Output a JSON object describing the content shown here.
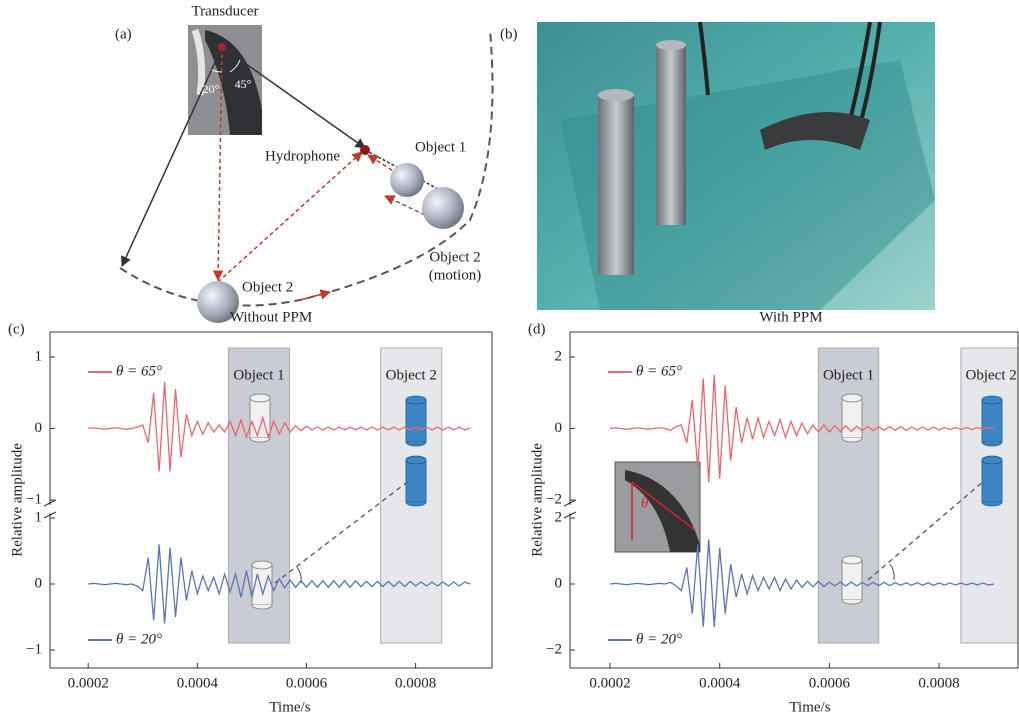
{
  "diagram": {
    "label": "(a)",
    "transducer": "Transducer",
    "angle_1": "20°",
    "angle_2": "45°",
    "hydrophone": "Hydrophone",
    "object_1": "Object 1",
    "object_2": "Object 2",
    "object_2_motion": [
      "Object 2",
      "(motion)"
    ]
  },
  "photo": {
    "label": "(b)"
  },
  "chart_data": [
    {
      "type": "line",
      "label": "(c)",
      "title": "Without PPM",
      "x_label": "Time/s",
      "y_label": "Relative amplitude",
      "xlim": [
        0.00013,
        0.00094
      ],
      "xticks": [
        0.0002,
        0.0004,
        0.0006,
        0.0008
      ],
      "ylim": [
        -1,
        1
      ],
      "yticks": [
        {
          "value": -1,
          "label": "−1"
        },
        0,
        1
      ],
      "regions": [
        {
          "label": "Object 1",
          "xlim": [
            0.000457,
            0.000569
          ],
          "color": "#c9ccd3"
        },
        {
          "label": "Object 2",
          "xlim": [
            0.000736,
            0.000848
          ],
          "color": "#e6e7ea"
        }
      ],
      "x": [
        0.0002,
        0.00021,
        0.00022,
        0.00023,
        0.00024,
        0.00025,
        0.00026,
        0.00027,
        0.00028,
        0.00029,
        0.0003,
        0.00031,
        0.00032,
        0.00033,
        0.00034,
        0.00035,
        0.00036,
        0.00037,
        0.00038,
        0.00039,
        0.0004,
        0.00041,
        0.00042,
        0.00043,
        0.00044,
        0.00045,
        0.00046,
        0.00047,
        0.00048,
        0.00049,
        0.0005,
        0.00051,
        0.00052,
        0.00053,
        0.00054,
        0.00055,
        0.00056,
        0.00057,
        0.00058,
        0.00059,
        0.0006,
        0.00061,
        0.00062,
        0.00063,
        0.00064,
        0.00065,
        0.00066,
        0.00067,
        0.00068,
        0.00069,
        0.0007,
        0.00071,
        0.00072,
        0.00073,
        0.00074,
        0.00075,
        0.00076,
        0.00077,
        0.00078,
        0.00079,
        0.0008,
        0.00081,
        0.00082,
        0.00083,
        0.00084,
        0.00085,
        0.00086,
        0.00087,
        0.00088,
        0.00089,
        0.0009
      ],
      "series": [
        {
          "name": "θ = 65°",
          "color": "#ef6469",
          "values": [
            0,
            0.01,
            0,
            -0.01,
            0,
            0.01,
            0,
            -0.01,
            0,
            0.02,
            0.05,
            -0.2,
            0.5,
            -0.6,
            0.65,
            -0.6,
            0.55,
            -0.4,
            0.2,
            -0.1,
            0.1,
            -0.08,
            0.08,
            -0.05,
            0.05,
            -0.05,
            0.1,
            -0.1,
            0.12,
            -0.12,
            0.1,
            -0.1,
            0.15,
            -0.12,
            0.1,
            -0.08,
            0.08,
            -0.05,
            0.04,
            -0.03,
            0.03,
            -0.02,
            0.02,
            -0.02,
            0.02,
            -0.02,
            0.02,
            -0.02,
            0.02,
            -0.02,
            0.02,
            -0.02,
            0.02,
            -0.02,
            0.02,
            -0.02,
            0.02,
            -0.02,
            0.02,
            -0.02,
            0.02,
            -0.02,
            0.02,
            -0.02,
            0.02,
            -0.02,
            0.02,
            -0.02,
            0.02,
            -0.02,
            0.01
          ]
        },
        {
          "name": "θ = 20°",
          "color": "#5b74b6",
          "values": [
            0,
            0.01,
            0,
            -0.01,
            0,
            0.01,
            0,
            -0.01,
            0,
            -0.03,
            -0.1,
            0.4,
            -0.55,
            0.6,
            -0.6,
            0.55,
            -0.5,
            0.4,
            -0.25,
            0.2,
            -0.15,
            0.12,
            -0.1,
            0.1,
            -0.15,
            0.15,
            -0.12,
            0.15,
            -0.2,
            0.2,
            -0.2,
            0.15,
            -0.15,
            0.12,
            -0.1,
            0.08,
            -0.06,
            0.06,
            -0.05,
            0.05,
            -0.05,
            0.05,
            -0.05,
            0.05,
            -0.05,
            0.05,
            -0.05,
            0.05,
            -0.05,
            0.05,
            -0.04,
            0.04,
            -0.04,
            0.04,
            -0.04,
            0.04,
            -0.04,
            0.04,
            -0.04,
            0.04,
            -0.03,
            0.03,
            -0.03,
            0.03,
            -0.03,
            0.03,
            -0.03,
            0.03,
            -0.03,
            0.03,
            0
          ]
        }
      ]
    },
    {
      "type": "line",
      "label": "(d)",
      "title": "With PPM",
      "x_label": "Time/s",
      "y_label": "Relative amplitude",
      "xlim": [
        0.000127,
        0.000944
      ],
      "xticks": [
        0.0002,
        0.0004,
        0.0006,
        0.0008
      ],
      "ylim": [
        -2,
        2
      ],
      "yticks": [
        {
          "value": -2,
          "label": "−2"
        },
        0,
        2
      ],
      "regions": [
        {
          "label": "Object 1",
          "xlim": [
            0.00058,
            0.00069
          ],
          "color": "#c9ccd3"
        },
        {
          "label": "Object 2",
          "xlim": [
            0.00084,
            0.00095
          ],
          "color": "#e6e7ea"
        }
      ],
      "inset_label": "θ",
      "x": [
        0.0002,
        0.00021,
        0.00022,
        0.00023,
        0.00024,
        0.00025,
        0.00026,
        0.00027,
        0.00028,
        0.00029,
        0.0003,
        0.00031,
        0.00032,
        0.00033,
        0.00034,
        0.00035,
        0.00036,
        0.00037,
        0.00038,
        0.00039,
        0.0004,
        0.00041,
        0.00042,
        0.00043,
        0.00044,
        0.00045,
        0.00046,
        0.00047,
        0.00048,
        0.00049,
        0.0005,
        0.00051,
        0.00052,
        0.00053,
        0.00054,
        0.00055,
        0.00056,
        0.00057,
        0.00058,
        0.00059,
        0.0006,
        0.00061,
        0.00062,
        0.00063,
        0.00064,
        0.00065,
        0.00066,
        0.00067,
        0.00068,
        0.00069,
        0.0007,
        0.00071,
        0.00072,
        0.00073,
        0.00074,
        0.00075,
        0.00076,
        0.00077,
        0.00078,
        0.00079,
        0.0008,
        0.00081,
        0.00082,
        0.00083,
        0.00084,
        0.00085,
        0.00086,
        0.00087,
        0.00088,
        0.00089,
        0.0009
      ],
      "series": [
        {
          "name": "θ = 65°",
          "color": "#ef6469",
          "values": [
            0,
            0.02,
            0,
            -0.02,
            0,
            0.02,
            0,
            -0.02,
            0,
            0.02,
            0,
            -0.05,
            0.05,
            0.1,
            -0.4,
            0.8,
            -1.1,
            1.4,
            -1.5,
            1.5,
            -1.4,
            1.2,
            -0.9,
            0.6,
            -0.4,
            0.3,
            -0.3,
            0.3,
            -0.25,
            0.2,
            -0.2,
            0.25,
            -0.25,
            0.2,
            -0.2,
            0.15,
            -0.15,
            0.1,
            -0.1,
            0.1,
            -0.1,
            0.08,
            -0.08,
            0.08,
            -0.08,
            0.06,
            -0.06,
            0.06,
            -0.06,
            0.05,
            -0.05,
            0.05,
            -0.05,
            0.05,
            -0.05,
            0.04,
            -0.04,
            0.04,
            -0.04,
            0.04,
            -0.04,
            0.03,
            -0.03,
            0.03,
            -0.03,
            0.03,
            -0.03,
            0.03,
            -0.03,
            0.03,
            0
          ]
        },
        {
          "name": "θ = 20°",
          "color": "#5b74b6",
          "values": [
            0,
            0.02,
            0,
            -0.02,
            0,
            0.02,
            0,
            -0.02,
            0,
            0.02,
            0,
            0.05,
            -0.05,
            -0.2,
            0.5,
            -0.9,
            1.2,
            -1.3,
            1.35,
            -1.3,
            1.1,
            -0.9,
            0.6,
            -0.4,
            0.3,
            -0.3,
            0.25,
            -0.2,
            0.2,
            -0.15,
            0.2,
            -0.2,
            0.15,
            -0.15,
            0.12,
            -0.1,
            0.08,
            -0.08,
            0.08,
            -0.08,
            0.06,
            -0.06,
            0.06,
            -0.06,
            0.06,
            -0.06,
            0.05,
            -0.05,
            0.05,
            -0.05,
            0.05,
            -0.05,
            0.04,
            -0.04,
            0.04,
            -0.04,
            0.04,
            -0.04,
            0.04,
            -0.04,
            0.03,
            -0.03,
            0.03,
            -0.03,
            0.03,
            -0.03,
            0.03,
            -0.03,
            0.03,
            -0.03,
            0
          ]
        }
      ]
    }
  ]
}
